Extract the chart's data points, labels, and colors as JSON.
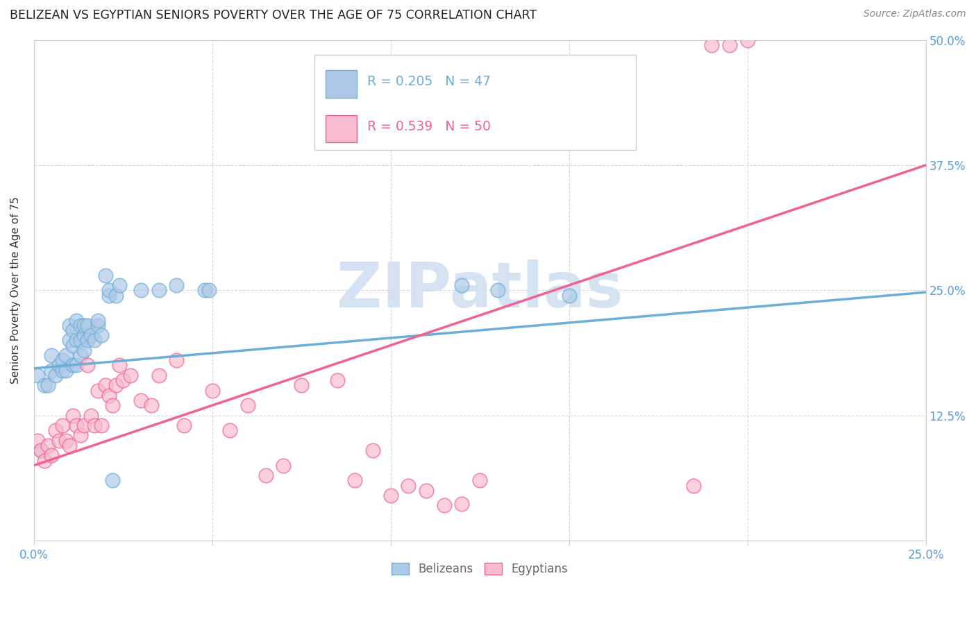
{
  "title": "BELIZEAN VS EGYPTIAN SENIORS POVERTY OVER THE AGE OF 75 CORRELATION CHART",
  "source": "Source: ZipAtlas.com",
  "ylabel_label": "Seniors Poverty Over the Age of 75",
  "xlim": [
    0.0,
    0.25
  ],
  "ylim": [
    0.0,
    0.5
  ],
  "watermark": "ZIPatlas",
  "legend_entries": [
    {
      "label": "R = 0.205   N = 47",
      "color": "#6baed6",
      "bold_parts": [
        "0.205",
        "47"
      ]
    },
    {
      "label": "R = 0.539   N = 50",
      "color": "#f48fb1",
      "bold_parts": [
        "0.539",
        "50"
      ]
    }
  ],
  "belizeans": {
    "color": "#6baed6",
    "fill_color": "#aec9e8",
    "x": [
      0.001,
      0.002,
      0.003,
      0.004,
      0.005,
      0.005,
      0.006,
      0.007,
      0.008,
      0.008,
      0.009,
      0.009,
      0.01,
      0.01,
      0.011,
      0.011,
      0.011,
      0.012,
      0.012,
      0.012,
      0.013,
      0.013,
      0.013,
      0.014,
      0.014,
      0.014,
      0.015,
      0.015,
      0.016,
      0.017,
      0.018,
      0.018,
      0.019,
      0.02,
      0.021,
      0.021,
      0.022,
      0.023,
      0.024,
      0.03,
      0.035,
      0.04,
      0.048,
      0.049,
      0.12,
      0.13,
      0.15
    ],
    "y": [
      0.165,
      0.09,
      0.155,
      0.155,
      0.17,
      0.185,
      0.165,
      0.175,
      0.17,
      0.18,
      0.17,
      0.185,
      0.2,
      0.215,
      0.175,
      0.195,
      0.21,
      0.175,
      0.2,
      0.22,
      0.185,
      0.2,
      0.215,
      0.19,
      0.205,
      0.215,
      0.2,
      0.215,
      0.205,
      0.2,
      0.215,
      0.22,
      0.205,
      0.265,
      0.245,
      0.25,
      0.06,
      0.245,
      0.255,
      0.25,
      0.25,
      0.255,
      0.25,
      0.25,
      0.255,
      0.25,
      0.245
    ],
    "trend_x": [
      0.0,
      0.25
    ],
    "trend_y": [
      0.172,
      0.248
    ]
  },
  "egyptians": {
    "color": "#f06292",
    "fill_color": "#f8bbd0",
    "x": [
      0.001,
      0.002,
      0.003,
      0.004,
      0.005,
      0.006,
      0.007,
      0.008,
      0.009,
      0.01,
      0.011,
      0.012,
      0.013,
      0.014,
      0.015,
      0.016,
      0.017,
      0.018,
      0.019,
      0.02,
      0.021,
      0.022,
      0.023,
      0.024,
      0.025,
      0.027,
      0.03,
      0.033,
      0.035,
      0.04,
      0.042,
      0.05,
      0.055,
      0.06,
      0.065,
      0.07,
      0.075,
      0.085,
      0.09,
      0.095,
      0.1,
      0.105,
      0.11,
      0.115,
      0.12,
      0.125,
      0.185,
      0.19,
      0.195,
      0.2
    ],
    "y": [
      0.1,
      0.09,
      0.08,
      0.095,
      0.085,
      0.11,
      0.1,
      0.115,
      0.1,
      0.095,
      0.125,
      0.115,
      0.105,
      0.115,
      0.175,
      0.125,
      0.115,
      0.15,
      0.115,
      0.155,
      0.145,
      0.135,
      0.155,
      0.175,
      0.16,
      0.165,
      0.14,
      0.135,
      0.165,
      0.18,
      0.115,
      0.15,
      0.11,
      0.135,
      0.065,
      0.075,
      0.155,
      0.16,
      0.06,
      0.09,
      0.045,
      0.055,
      0.05,
      0.035,
      0.037,
      0.06,
      0.055,
      0.495,
      0.495,
      0.5
    ],
    "trend_x": [
      0.0,
      0.25
    ],
    "trend_y": [
      0.075,
      0.375
    ]
  },
  "background_color": "#ffffff",
  "grid_color": "#cccccc",
  "axis_color": "#cccccc",
  "tick_color": "#5b9bd5",
  "title_color": "#222222",
  "title_fontsize": 12.5,
  "source_fontsize": 10,
  "ylabel_fontsize": 11,
  "watermark_color": "#d0dff0",
  "watermark_fontsize": 65
}
